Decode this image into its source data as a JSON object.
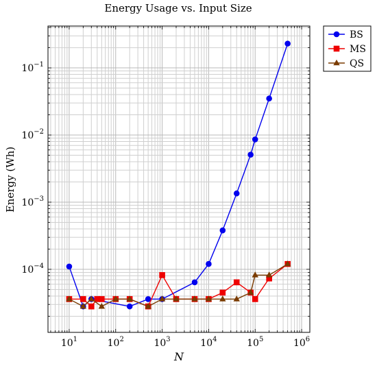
{
  "chart_data": {
    "type": "line",
    "title": "Energy Usage vs. Input Size",
    "xlabel": "N",
    "ylabel": "Energy (Wh)",
    "x_scale": "log",
    "y_scale": "log",
    "xlim": [
      3.5,
      1500000
    ],
    "ylim": [
      1.15e-05,
      0.42
    ],
    "grid": true,
    "legend_position": "outside-top-right",
    "x_ticks": [
      {
        "value": 10,
        "base": "10",
        "exp": "1"
      },
      {
        "value": 100,
        "base": "10",
        "exp": "2"
      },
      {
        "value": 1000,
        "base": "10",
        "exp": "3"
      },
      {
        "value": 10000,
        "base": "10",
        "exp": "4"
      },
      {
        "value": 100000,
        "base": "10",
        "exp": "5"
      },
      {
        "value": 1000000,
        "base": "10",
        "exp": "6"
      }
    ],
    "y_ticks": [
      {
        "value": 0.0001,
        "base": "10",
        "exp": "−4"
      },
      {
        "value": 0.001,
        "base": "10",
        "exp": "−3"
      },
      {
        "value": 0.01,
        "base": "10",
        "exp": "−2"
      },
      {
        "value": 0.1,
        "base": "10",
        "exp": "−1"
      }
    ],
    "series": [
      {
        "name": "BS",
        "color": "#0000ee",
        "marker": "circle",
        "x": [
          10,
          20,
          30,
          200,
          500,
          1000,
          5000,
          10000,
          20000,
          40000,
          80000,
          100000,
          200000,
          500000
        ],
        "y": [
          0.00011,
          2.8e-05,
          3.6e-05,
          2.8e-05,
          3.6e-05,
          3.6e-05,
          6.4e-05,
          0.00012,
          0.00038,
          0.00135,
          0.0051,
          0.0086,
          0.035,
          0.23
        ]
      },
      {
        "name": "MS",
        "color": "#ee0000",
        "marker": "square",
        "x": [
          10,
          20,
          30,
          40,
          50,
          100,
          200,
          500,
          1000,
          2000,
          5000,
          10000,
          20000,
          40000,
          80000,
          100000,
          200000,
          500000
        ],
        "y": [
          3.6e-05,
          3.6e-05,
          2.8e-05,
          3.6e-05,
          3.6e-05,
          3.6e-05,
          3.6e-05,
          2.8e-05,
          8.2e-05,
          3.6e-05,
          3.6e-05,
          3.6e-05,
          4.5e-05,
          6.4e-05,
          4.5e-05,
          3.6e-05,
          7.3e-05,
          0.00012
        ]
      },
      {
        "name": "QS",
        "color": "#7a3b00",
        "marker": "triangle",
        "x": [
          10,
          20,
          30,
          50,
          100,
          200,
          500,
          1000,
          2000,
          5000,
          10000,
          20000,
          40000,
          80000,
          100000,
          200000,
          500000
        ],
        "y": [
          3.6e-05,
          2.8e-05,
          3.6e-05,
          2.8e-05,
          3.6e-05,
          3.6e-05,
          2.8e-05,
          3.6e-05,
          3.6e-05,
          3.6e-05,
          3.6e-05,
          3.6e-05,
          3.6e-05,
          4.5e-05,
          8.2e-05,
          8.2e-05,
          0.00012
        ]
      }
    ]
  }
}
